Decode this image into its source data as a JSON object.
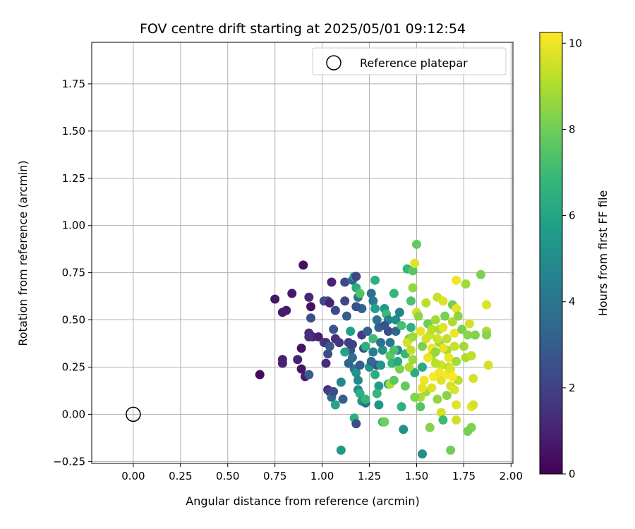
{
  "chart_data": {
    "type": "scatter",
    "title": "FOV centre drift starting at 2025/05/01 09:12:54",
    "xlabel": "Angular distance from reference (arcmin)",
    "ylabel": "Rotation from reference (arcmin)",
    "xlim": [
      -0.22,
      2.01
    ],
    "ylim": [
      -0.26,
      1.97
    ],
    "xticks": [
      "0.00",
      "0.25",
      "0.50",
      "0.75",
      "1.00",
      "1.25",
      "1.50",
      "1.75",
      "2.00"
    ],
    "yticks": [
      "−0.25",
      "0.00",
      "0.25",
      "0.50",
      "0.75",
      "1.00",
      "1.25",
      "1.50",
      "1.75"
    ],
    "grid": true,
    "legend": {
      "position": "top-right",
      "label": "Reference platepar",
      "marker": "hollow-circle"
    },
    "reference_point": {
      "x": 0.0,
      "y": 0.0
    },
    "colorbar": {
      "label": "Hours from first FF file",
      "range": [
        0,
        10.25
      ],
      "ticks": [
        "0",
        "2",
        "4",
        "6",
        "8",
        "10"
      ],
      "colormap": "viridis"
    },
    "points": [
      {
        "x": 0.67,
        "y": 0.21,
        "c": 0.2
      },
      {
        "x": 0.75,
        "y": 0.61,
        "c": 0.6
      },
      {
        "x": 0.79,
        "y": 0.54,
        "c": 0.7
      },
      {
        "x": 0.81,
        "y": 0.55,
        "c": 0.8
      },
      {
        "x": 0.84,
        "y": 0.64,
        "c": 0.7
      },
      {
        "x": 0.79,
        "y": 0.29,
        "c": 0.9
      },
      {
        "x": 0.79,
        "y": 0.27,
        "c": 1.0
      },
      {
        "x": 0.87,
        "y": 0.29,
        "c": 1.0
      },
      {
        "x": 0.89,
        "y": 0.35,
        "c": 0.5
      },
      {
        "x": 0.89,
        "y": 0.24,
        "c": 0.6
      },
      {
        "x": 0.91,
        "y": 0.2,
        "c": 0.8
      },
      {
        "x": 0.9,
        "y": 0.79,
        "c": 0.4
      },
      {
        "x": 0.93,
        "y": 0.62,
        "c": 1.1
      },
      {
        "x": 0.94,
        "y": 0.57,
        "c": 0.5
      },
      {
        "x": 0.93,
        "y": 0.43,
        "c": 1.3
      },
      {
        "x": 0.94,
        "y": 0.51,
        "c": 2.5
      },
      {
        "x": 0.95,
        "y": 0.41,
        "c": 1.1
      },
      {
        "x": 0.93,
        "y": 0.41,
        "c": 1.5
      },
      {
        "x": 0.98,
        "y": 0.41,
        "c": 0.9
      },
      {
        "x": 1.01,
        "y": 0.6,
        "c": 2.2
      },
      {
        "x": 1.03,
        "y": 0.6,
        "c": 2.6
      },
      {
        "x": 1.04,
        "y": 0.59,
        "c": 1.0
      },
      {
        "x": 1.05,
        "y": 0.7,
        "c": 1.0
      },
      {
        "x": 1.07,
        "y": 0.55,
        "c": 2.2
      },
      {
        "x": 1.01,
        "y": 0.38,
        "c": 2.0
      },
      {
        "x": 1.02,
        "y": 0.38,
        "c": 1.5
      },
      {
        "x": 1.02,
        "y": 0.27,
        "c": 1.3
      },
      {
        "x": 1.03,
        "y": 0.32,
        "c": 2.4
      },
      {
        "x": 1.04,
        "y": 0.36,
        "c": 2.8
      },
      {
        "x": 1.06,
        "y": 0.45,
        "c": 2.7
      },
      {
        "x": 1.07,
        "y": 0.4,
        "c": 1.4
      },
      {
        "x": 1.09,
        "y": 0.38,
        "c": 1.6
      },
      {
        "x": 1.03,
        "y": 0.13,
        "c": 1.3
      },
      {
        "x": 1.04,
        "y": 0.12,
        "c": 2.0
      },
      {
        "x": 1.05,
        "y": 0.09,
        "c": 3.6
      },
      {
        "x": 1.06,
        "y": 0.12,
        "c": 2.4
      },
      {
        "x": 0.93,
        "y": 0.21,
        "c": 3.0
      },
      {
        "x": 1.07,
        "y": 0.05,
        "c": 6.0
      },
      {
        "x": 1.1,
        "y": 0.17,
        "c": 4.8
      },
      {
        "x": 1.11,
        "y": 0.08,
        "c": 3.0
      },
      {
        "x": 1.1,
        "y": -0.19,
        "c": 5.5
      },
      {
        "x": 1.12,
        "y": 0.7,
        "c": 2.2
      },
      {
        "x": 1.12,
        "y": 0.6,
        "c": 2.1
      },
      {
        "x": 1.13,
        "y": 0.52,
        "c": 3.0
      },
      {
        "x": 1.14,
        "y": 0.38,
        "c": 1.9
      },
      {
        "x": 1.15,
        "y": 0.34,
        "c": 2.6
      },
      {
        "x": 1.16,
        "y": 0.37,
        "c": 2.0
      },
      {
        "x": 1.15,
        "y": 0.44,
        "c": 5.8
      },
      {
        "x": 1.16,
        "y": 0.71,
        "c": 3.2
      },
      {
        "x": 1.17,
        "y": 0.73,
        "c": 5.8
      },
      {
        "x": 1.18,
        "y": 0.73,
        "c": 2.0
      },
      {
        "x": 1.18,
        "y": 0.67,
        "c": 6.3
      },
      {
        "x": 1.19,
        "y": 0.62,
        "c": 4.0
      },
      {
        "x": 1.2,
        "y": 0.64,
        "c": 7.4
      },
      {
        "x": 1.21,
        "y": 0.56,
        "c": 3.2
      },
      {
        "x": 1.18,
        "y": 0.57,
        "c": 2.6
      },
      {
        "x": 1.16,
        "y": 0.3,
        "c": 3.7
      },
      {
        "x": 1.17,
        "y": 0.24,
        "c": 4.0
      },
      {
        "x": 1.18,
        "y": 0.22,
        "c": 5.2
      },
      {
        "x": 1.19,
        "y": 0.18,
        "c": 4.8
      },
      {
        "x": 1.2,
        "y": 0.26,
        "c": 3.0
      },
      {
        "x": 1.21,
        "y": 0.42,
        "c": 1.8
      },
      {
        "x": 1.22,
        "y": 0.35,
        "c": 2.6
      },
      {
        "x": 1.23,
        "y": 0.36,
        "c": 6.5
      },
      {
        "x": 1.17,
        "y": -0.02,
        "c": 6.5
      },
      {
        "x": 1.18,
        "y": -0.05,
        "c": 2.5
      },
      {
        "x": 1.19,
        "y": 0.13,
        "c": 5.0
      },
      {
        "x": 1.2,
        "y": 0.11,
        "c": 6.5
      },
      {
        "x": 1.21,
        "y": 0.07,
        "c": 5.5
      },
      {
        "x": 1.23,
        "y": 0.06,
        "c": 3.7
      },
      {
        "x": 1.23,
        "y": 0.08,
        "c": 6.8
      },
      {
        "x": 1.25,
        "y": 0.25,
        "c": 5.3
      },
      {
        "x": 1.26,
        "y": 0.64,
        "c": 3.8
      },
      {
        "x": 1.27,
        "y": 0.6,
        "c": 4.3
      },
      {
        "x": 1.28,
        "y": 0.71,
        "c": 6.5
      },
      {
        "x": 1.28,
        "y": 0.56,
        "c": 5.8
      },
      {
        "x": 1.29,
        "y": 0.5,
        "c": 3.9
      },
      {
        "x": 1.3,
        "y": 0.46,
        "c": 3.2
      },
      {
        "x": 1.27,
        "y": 0.4,
        "c": 7.0
      },
      {
        "x": 1.27,
        "y": 0.33,
        "c": 4.4
      },
      {
        "x": 1.29,
        "y": 0.26,
        "c": 2.7
      },
      {
        "x": 1.28,
        "y": 0.21,
        "c": 6.4
      },
      {
        "x": 1.3,
        "y": 0.15,
        "c": 5.6
      },
      {
        "x": 1.29,
        "y": 0.11,
        "c": 6.8
      },
      {
        "x": 1.3,
        "y": 0.05,
        "c": 5.3
      },
      {
        "x": 1.31,
        "y": 0.26,
        "c": 5.3
      },
      {
        "x": 1.32,
        "y": 0.34,
        "c": 5.2
      },
      {
        "x": 1.33,
        "y": 0.56,
        "c": 5.5
      },
      {
        "x": 1.34,
        "y": 0.53,
        "c": 7.0
      },
      {
        "x": 1.35,
        "y": 0.5,
        "c": 4.6
      },
      {
        "x": 1.35,
        "y": 0.44,
        "c": 2.3
      },
      {
        "x": 1.36,
        "y": 0.38,
        "c": 4.0
      },
      {
        "x": 1.36,
        "y": 0.31,
        "c": 7.6
      },
      {
        "x": 1.37,
        "y": 0.27,
        "c": 6.8
      },
      {
        "x": 1.38,
        "y": 0.64,
        "c": 6.8
      },
      {
        "x": 1.39,
        "y": 0.5,
        "c": 5.0
      },
      {
        "x": 1.39,
        "y": 0.44,
        "c": 3.3
      },
      {
        "x": 1.4,
        "y": 0.34,
        "c": 4.8
      },
      {
        "x": 1.41,
        "y": 0.54,
        "c": 4.5
      },
      {
        "x": 1.42,
        "y": 0.47,
        "c": 7.2
      },
      {
        "x": 1.32,
        "y": -0.04,
        "c": 7.0
      },
      {
        "x": 1.33,
        "y": -0.04,
        "c": 8.0
      },
      {
        "x": 1.35,
        "y": 0.16,
        "c": 6.0
      },
      {
        "x": 1.36,
        "y": 0.16,
        "c": 9.0
      },
      {
        "x": 1.38,
        "y": 0.18,
        "c": 7.6
      },
      {
        "x": 1.41,
        "y": 0.24,
        "c": 8.2
      },
      {
        "x": 1.42,
        "y": 0.04,
        "c": 6.5
      },
      {
        "x": 1.43,
        "y": -0.08,
        "c": 5.2
      },
      {
        "x": 1.44,
        "y": 0.15,
        "c": 7.8
      },
      {
        "x": 1.44,
        "y": 0.32,
        "c": 6.8
      },
      {
        "x": 1.45,
        "y": 0.77,
        "c": 6.8
      },
      {
        "x": 1.47,
        "y": 0.6,
        "c": 7.3
      },
      {
        "x": 1.48,
        "y": 0.76,
        "c": 7.6
      },
      {
        "x": 1.48,
        "y": 0.67,
        "c": 8.6
      },
      {
        "x": 1.49,
        "y": 0.8,
        "c": 9.8
      },
      {
        "x": 1.5,
        "y": 0.9,
        "c": 7.8
      },
      {
        "x": 1.47,
        "y": 0.46,
        "c": 6.6
      },
      {
        "x": 1.46,
        "y": 0.4,
        "c": 8.2
      },
      {
        "x": 1.47,
        "y": 0.34,
        "c": 9.3
      },
      {
        "x": 1.48,
        "y": 0.29,
        "c": 8.7
      },
      {
        "x": 1.49,
        "y": 0.22,
        "c": 6.4
      },
      {
        "x": 1.5,
        "y": 0.54,
        "c": 9.6
      },
      {
        "x": 1.51,
        "y": 0.52,
        "c": 8.5
      },
      {
        "x": 1.52,
        "y": 0.44,
        "c": 9.9
      },
      {
        "x": 1.53,
        "y": 0.36,
        "c": 8.2
      },
      {
        "x": 1.53,
        "y": 0.25,
        "c": 6.2
      },
      {
        "x": 1.54,
        "y": 0.18,
        "c": 10.0
      },
      {
        "x": 1.55,
        "y": 0.12,
        "c": 8.8
      },
      {
        "x": 1.52,
        "y": 0.09,
        "c": 9.0
      },
      {
        "x": 1.52,
        "y": 0.04,
        "c": 7.5
      },
      {
        "x": 1.53,
        "y": -0.21,
        "c": 5.0
      },
      {
        "x": 1.55,
        "y": 0.59,
        "c": 9.2
      },
      {
        "x": 1.56,
        "y": 0.48,
        "c": 8.0
      },
      {
        "x": 1.57,
        "y": 0.42,
        "c": 9.5
      },
      {
        "x": 1.58,
        "y": 0.35,
        "c": 10.0
      },
      {
        "x": 1.58,
        "y": 0.31,
        "c": 9.1
      },
      {
        "x": 1.59,
        "y": 0.2,
        "c": 10.2
      },
      {
        "x": 1.58,
        "y": 0.14,
        "c": 9.7
      },
      {
        "x": 1.57,
        "y": -0.07,
        "c": 8.3
      },
      {
        "x": 1.6,
        "y": 0.5,
        "c": 8.8
      },
      {
        "x": 1.61,
        "y": 0.62,
        "c": 9.4
      },
      {
        "x": 1.62,
        "y": 0.45,
        "c": 9.0
      },
      {
        "x": 1.62,
        "y": 0.38,
        "c": 8.7
      },
      {
        "x": 1.63,
        "y": 0.26,
        "c": 9.5
      },
      {
        "x": 1.62,
        "y": 0.22,
        "c": 10.1
      },
      {
        "x": 1.63,
        "y": 0.18,
        "c": 9.8
      },
      {
        "x": 1.61,
        "y": 0.08,
        "c": 8.6
      },
      {
        "x": 1.63,
        "y": 0.01,
        "c": 9.6
      },
      {
        "x": 1.64,
        "y": -0.03,
        "c": 7.0
      },
      {
        "x": 1.64,
        "y": 0.6,
        "c": 9.7
      },
      {
        "x": 1.65,
        "y": 0.52,
        "c": 8.2
      },
      {
        "x": 1.66,
        "y": 0.4,
        "c": 9.3
      },
      {
        "x": 1.66,
        "y": 0.34,
        "c": 8.9
      },
      {
        "x": 1.67,
        "y": 0.3,
        "c": 10.0
      },
      {
        "x": 1.67,
        "y": 0.25,
        "c": 9.2
      },
      {
        "x": 1.66,
        "y": 0.1,
        "c": 8.4
      },
      {
        "x": 1.68,
        "y": 0.15,
        "c": 9.6
      },
      {
        "x": 1.68,
        "y": -0.19,
        "c": 8.0
      },
      {
        "x": 1.69,
        "y": 0.58,
        "c": 8.0
      },
      {
        "x": 1.69,
        "y": 0.49,
        "c": 9.0
      },
      {
        "x": 1.7,
        "y": 0.43,
        "c": 10.0
      },
      {
        "x": 1.7,
        "y": 0.36,
        "c": 9.4
      },
      {
        "x": 1.71,
        "y": 0.28,
        "c": 8.8
      },
      {
        "x": 1.71,
        "y": 0.56,
        "c": 9.9
      },
      {
        "x": 1.72,
        "y": 0.52,
        "c": 8.5
      },
      {
        "x": 1.72,
        "y": 0.18,
        "c": 9.2
      },
      {
        "x": 1.71,
        "y": 0.05,
        "c": 9.8
      },
      {
        "x": 1.71,
        "y": -0.03,
        "c": 9.5
      },
      {
        "x": 1.71,
        "y": 0.71,
        "c": 10.0
      },
      {
        "x": 1.74,
        "y": 0.45,
        "c": 8.2
      },
      {
        "x": 1.75,
        "y": 0.36,
        "c": 8.8
      },
      {
        "x": 1.76,
        "y": 0.3,
        "c": 9.0
      },
      {
        "x": 1.76,
        "y": 0.69,
        "c": 8.8
      },
      {
        "x": 1.77,
        "y": 0.42,
        "c": 8.4
      },
      {
        "x": 1.78,
        "y": 0.48,
        "c": 9.6
      },
      {
        "x": 1.79,
        "y": 0.31,
        "c": 9.3
      },
      {
        "x": 1.79,
        "y": 0.04,
        "c": 10.0
      },
      {
        "x": 1.8,
        "y": 0.05,
        "c": 9.6
      },
      {
        "x": 1.79,
        "y": -0.07,
        "c": 8.3
      },
      {
        "x": 1.77,
        "y": -0.09,
        "c": 8.1
      },
      {
        "x": 1.8,
        "y": 0.19,
        "c": 9.6
      },
      {
        "x": 1.81,
        "y": 0.42,
        "c": 8.3
      },
      {
        "x": 1.84,
        "y": 0.74,
        "c": 8.2
      },
      {
        "x": 1.87,
        "y": 0.58,
        "c": 9.7
      },
      {
        "x": 1.87,
        "y": 0.44,
        "c": 9.0
      },
      {
        "x": 1.87,
        "y": 0.42,
        "c": 8.4
      },
      {
        "x": 1.88,
        "y": 0.26,
        "c": 9.6
      },
      {
        "x": 1.55,
        "y": 0.4,
        "c": 9.6
      },
      {
        "x": 1.45,
        "y": 0.38,
        "c": 9.6
      },
      {
        "x": 1.48,
        "y": 0.41,
        "c": 8.8
      },
      {
        "x": 1.46,
        "y": 0.25,
        "c": 9.0
      },
      {
        "x": 1.56,
        "y": 0.3,
        "c": 10.0
      },
      {
        "x": 1.6,
        "y": 0.27,
        "c": 9.2
      },
      {
        "x": 1.64,
        "y": 0.35,
        "c": 9.9
      },
      {
        "x": 1.66,
        "y": 0.21,
        "c": 10.1
      },
      {
        "x": 1.68,
        "y": 0.24,
        "c": 9.7
      },
      {
        "x": 1.69,
        "y": 0.2,
        "c": 10.2
      },
      {
        "x": 1.7,
        "y": 0.13,
        "c": 9.7
      },
      {
        "x": 1.58,
        "y": 0.45,
        "c": 9.1
      },
      {
        "x": 1.61,
        "y": 0.4,
        "c": 9.5
      },
      {
        "x": 1.64,
        "y": 0.46,
        "c": 9.8
      },
      {
        "x": 1.6,
        "y": 0.33,
        "c": 8.6
      },
      {
        "x": 1.53,
        "y": 0.14,
        "c": 9.9
      },
      {
        "x": 1.49,
        "y": 0.09,
        "c": 8.3
      },
      {
        "x": 1.38,
        "y": 0.34,
        "c": 7.3
      },
      {
        "x": 1.4,
        "y": 0.28,
        "c": 6.2
      },
      {
        "x": 1.26,
        "y": 0.28,
        "c": 3.5
      },
      {
        "x": 1.24,
        "y": 0.44,
        "c": 3.0
      },
      {
        "x": 1.31,
        "y": 0.38,
        "c": 3.8
      },
      {
        "x": 1.33,
        "y": 0.47,
        "c": 2.6
      },
      {
        "x": 1.14,
        "y": 0.27,
        "c": 3.3
      },
      {
        "x": 1.12,
        "y": 0.33,
        "c": 6.0
      }
    ]
  }
}
